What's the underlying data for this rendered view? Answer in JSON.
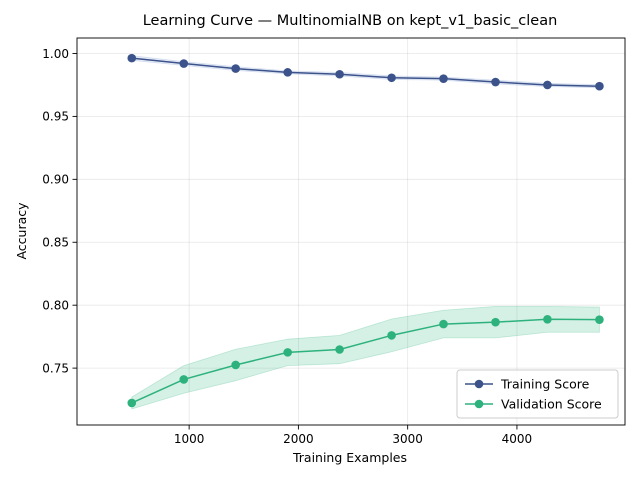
{
  "chart_data": {
    "type": "line",
    "title": "Learning Curve — MultinomialNB on kept_v1_basic_clean",
    "xlabel": "Training Examples",
    "ylabel": "Accuracy",
    "xlim": [
      -26.2,
      4989
    ],
    "ylim": [
      0.7048,
      1.0123
    ],
    "xticks": [
      1000,
      2000,
      3000,
      4000
    ],
    "yticks": [
      0.75,
      0.8,
      0.85,
      0.9,
      0.95,
      1.0
    ],
    "x_tick_labels": [
      "1000",
      "2000",
      "3000",
      "4000"
    ],
    "y_tick_labels": [
      "0.75",
      "0.80",
      "0.85",
      "0.90",
      "0.95",
      "1.00"
    ],
    "grid": true,
    "legend_position": "lower-right",
    "x": [
      475,
      951,
      1426,
      1902,
      2377,
      2853,
      3328,
      3804,
      4279,
      4755
    ],
    "series": [
      {
        "name": "Training Score",
        "color": "#3b528b",
        "band_color": "#7f9ad4",
        "values": [
          0.9963,
          0.992,
          0.988,
          0.985,
          0.9835,
          0.9807,
          0.98,
          0.9773,
          0.975,
          0.974
        ],
        "lower": [
          0.9945,
          0.9905,
          0.9865,
          0.9838,
          0.982,
          0.9793,
          0.9787,
          0.9758,
          0.9737,
          0.9728
        ],
        "upper": [
          0.9983,
          0.9935,
          0.9895,
          0.9862,
          0.985,
          0.9822,
          0.9813,
          0.9788,
          0.9763,
          0.9752
        ]
      },
      {
        "name": "Validation Score",
        "color": "#2db27d",
        "band_color": "#2db27d",
        "values": [
          0.7223,
          0.741,
          0.7525,
          0.7625,
          0.7648,
          0.776,
          0.785,
          0.7865,
          0.7888,
          0.7885
        ],
        "lower": [
          0.7175,
          0.73,
          0.74,
          0.752,
          0.7535,
          0.763,
          0.774,
          0.774,
          0.7785,
          0.7785
        ],
        "upper": [
          0.727,
          0.752,
          0.765,
          0.773,
          0.776,
          0.789,
          0.796,
          0.799,
          0.799,
          0.7985
        ]
      }
    ]
  }
}
